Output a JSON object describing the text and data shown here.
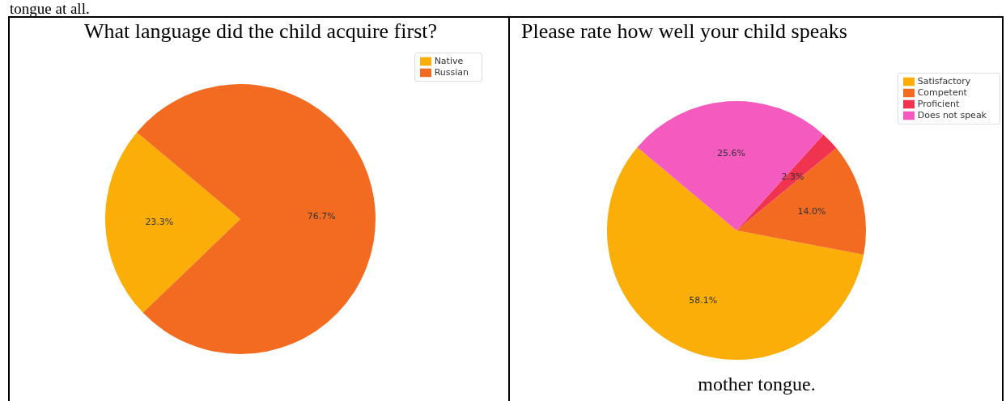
{
  "chart_data": [
    {
      "type": "pie",
      "title": "What language did the child acquire first?",
      "categories": [
        "Native",
        "Russian"
      ],
      "values": [
        23.3,
        76.7
      ],
      "colors": [
        "#fbad08",
        "#f26b21"
      ],
      "value_labels": [
        "23.3%",
        "76.7%"
      ],
      "legend": "top right",
      "annotations": [
        "tongue at all."
      ]
    },
    {
      "type": "pie",
      "title": "Please rate how well your child speaks",
      "categories": [
        "Satisfactory",
        "Competent",
        "Proficient",
        "Does not speak"
      ],
      "values": [
        58.1,
        14.0,
        2.3,
        25.6
      ],
      "colors": [
        "#fbad08",
        "#f26b21",
        "#f0344f",
        "#f55bbf"
      ],
      "value_labels": [
        "58.1%",
        "14.0%",
        "2.3%",
        "25.6%"
      ],
      "legend": "top right",
      "annotations": [
        "mother tongue."
      ]
    }
  ]
}
